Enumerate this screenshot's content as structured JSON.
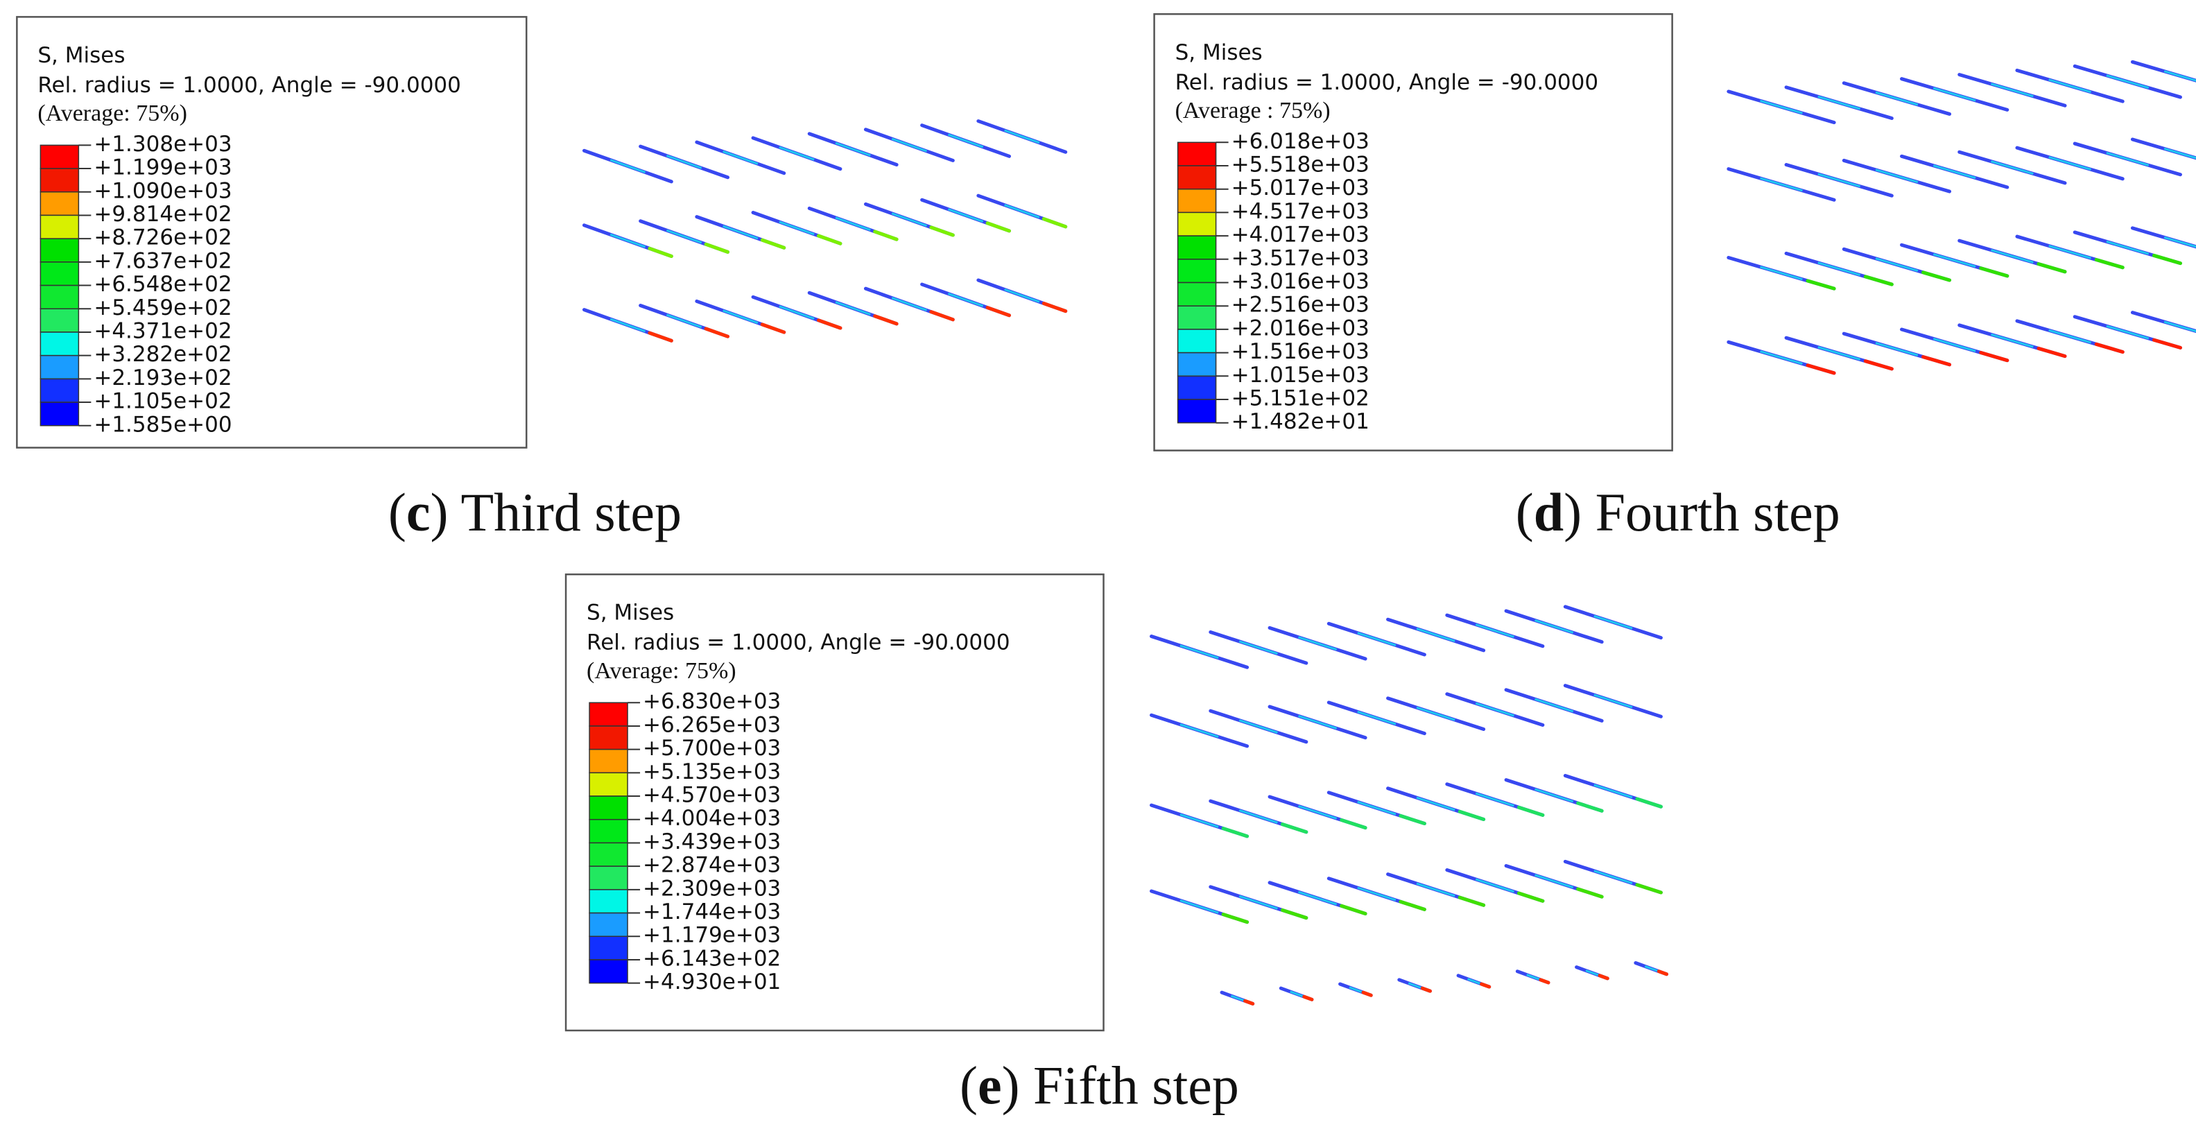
{
  "panels": [
    {
      "legend": {
        "title": "S, Mises",
        "subtitle": "Rel. radius = 1.0000, Angle = -90.0000",
        "average": "(Average: 75%)",
        "values": [
          "+1.308e+03",
          "+1.199e+03",
          "+1.090e+03",
          "+9.814e+02",
          "+8.726e+02",
          "+7.637e+02",
          "+6.548e+02",
          "+5.459e+02",
          "+4.371e+02",
          "+3.282e+02",
          "+2.193e+02",
          "+1.105e+02",
          "+1.585e+00"
        ]
      },
      "caption": {
        "open": "(",
        "letter": "c",
        "text": ") Third step"
      }
    },
    {
      "legend": {
        "title": "S, Mises",
        "subtitle": "Rel. radius = 1.0000, Angle = -90.0000",
        "average": "(Average : 75%)",
        "values": [
          "+6.018e+03",
          "+5.518e+03",
          "+5.017e+03",
          "+4.517e+03",
          "+4.017e+03",
          "+3.517e+03",
          "+3.016e+03",
          "+2.516e+03",
          "+2.016e+03",
          "+1.516e+03",
          "+1.015e+03",
          "+5.151e+02",
          "+1.482e+01"
        ]
      },
      "caption": {
        "open": "(",
        "letter": "d",
        "text": ") Fourth step"
      }
    },
    {
      "legend": {
        "title": "S, Mises",
        "subtitle": "Rel. radius = 1.0000, Angle = -90.0000",
        "average": "(Average: 75%)",
        "values": [
          "+6.830e+03",
          "+6.265e+03",
          "+5.700e+03",
          "+5.135e+03",
          "+4.570e+03",
          "+4.004e+03",
          "+3.439e+03",
          "+2.874e+03",
          "+2.309e+03",
          "+1.744e+03",
          "+1.179e+03",
          "+6.143e+02",
          "+4.930e+01"
        ]
      },
      "caption": {
        "open": "(",
        "letter": "e",
        "text": ") Fifth step"
      }
    }
  ]
}
